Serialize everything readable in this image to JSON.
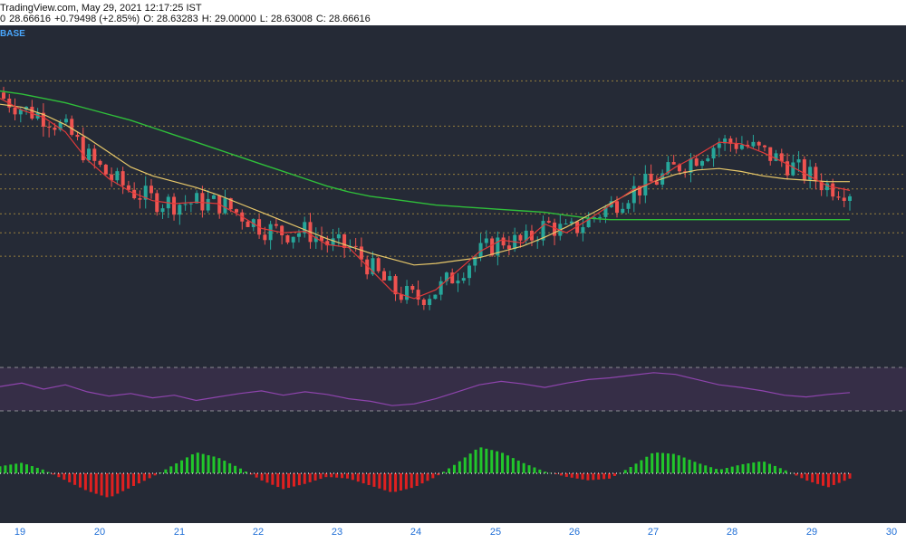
{
  "header": {
    "source": "TradingView.com, May 29, 2021 12:17:25 IST",
    "price_prefix": "0",
    "price": "28.66616",
    "change": "+0.79498 (+2.85%)",
    "open": "O: 28.63283",
    "high": "H: 29.00000",
    "low": "L: 28.63008",
    "close": "C: 28.66616",
    "symbol_tag": "BASE"
  },
  "colors": {
    "background": "#252a36",
    "up": "#26a69a",
    "down": "#ef5350",
    "ma_fast": "#e03a3a",
    "ma_mid": "#e8c86a",
    "ma_slow": "#2fbf3a",
    "rsi": "#8e44ad",
    "rsi_band": "#3a2f4a",
    "hist_up": "#21c62b",
    "hist_down": "#e02020",
    "dots": "#cfcfcf",
    "hline": "#c8a441"
  },
  "x_axis_labels": [
    "19",
    "20",
    "21",
    "22",
    "23",
    "24",
    "25",
    "26",
    "27",
    "28",
    "29",
    "30"
  ],
  "chart_data": {
    "type": "candlestick",
    "price_hlines": [
      40.8,
      37.7,
      35.7,
      34.4,
      33.4,
      31.7,
      30.4,
      28.8
    ],
    "ylim": [
      22.3,
      44.6
    ],
    "ma_fast": [
      39.6,
      38.8,
      38.3,
      37.3,
      35.4,
      34.1,
      33.2,
      32.6,
      32.4,
      32.5,
      32.4,
      31.6,
      30.7,
      30.4,
      30.5,
      29.6,
      29.4,
      27.9,
      26.4,
      25.9,
      26.5,
      27.8,
      29.1,
      29.9,
      29.7,
      31.0,
      30.4,
      31.3,
      32.3,
      33.3,
      33.9,
      34.9,
      35.7,
      36.6,
      36.5,
      35.9,
      35.2,
      34.4,
      33.6,
      33.3
    ],
    "ma_mid": [
      39.2,
      39.0,
      38.5,
      37.8,
      36.9,
      35.9,
      34.9,
      34.3,
      33.9,
      33.5,
      33.0,
      32.4,
      31.8,
      31.2,
      30.6,
      30.0,
      29.5,
      29.0,
      28.6,
      28.2,
      28.3,
      28.5,
      28.7,
      29.1,
      29.5,
      30.1,
      30.8,
      31.6,
      32.4,
      33.2,
      33.9,
      34.4,
      34.7,
      34.8,
      34.6,
      34.3,
      34.1,
      34.0,
      33.9,
      33.9
    ],
    "ma_slow": [
      40.1,
      39.9,
      39.6,
      39.3,
      38.9,
      38.5,
      38.1,
      37.6,
      37.1,
      36.6,
      36.1,
      35.6,
      35.1,
      34.6,
      34.1,
      33.6,
      33.2,
      32.9,
      32.7,
      32.5,
      32.3,
      32.2,
      32.1,
      32.0,
      31.9,
      31.8,
      31.6,
      31.4,
      31.3,
      31.3,
      31.3,
      31.3,
      31.3,
      31.3,
      31.3,
      31.3,
      31.3,
      31.3,
      31.3,
      31.3
    ],
    "rsi": [
      58,
      62,
      55,
      60,
      52,
      47,
      50,
      45,
      48,
      42,
      46,
      50,
      53,
      48,
      52,
      49,
      44,
      41,
      36,
      38,
      44,
      52,
      60,
      64,
      61,
      57,
      62,
      66,
      68,
      71,
      74,
      72,
      66,
      60,
      57,
      53,
      48,
      46,
      49,
      51
    ],
    "histogram": [
      0.4,
      0.6,
      0.2,
      -0.4,
      -1.0,
      -1.4,
      -0.8,
      -0.2,
      0.5,
      1.2,
      0.9,
      0.3,
      -0.4,
      -0.9,
      -0.6,
      -0.2,
      -0.3,
      -0.7,
      -1.1,
      -0.8,
      -0.2,
      0.6,
      1.5,
      1.2,
      0.6,
      0.1,
      -0.2,
      -0.4,
      -0.3,
      0.4,
      1.2,
      1.1,
      0.6,
      0.2,
      0.5,
      0.7,
      0.2,
      -0.4,
      -0.8,
      -0.3
    ],
    "volume_dots": true
  }
}
